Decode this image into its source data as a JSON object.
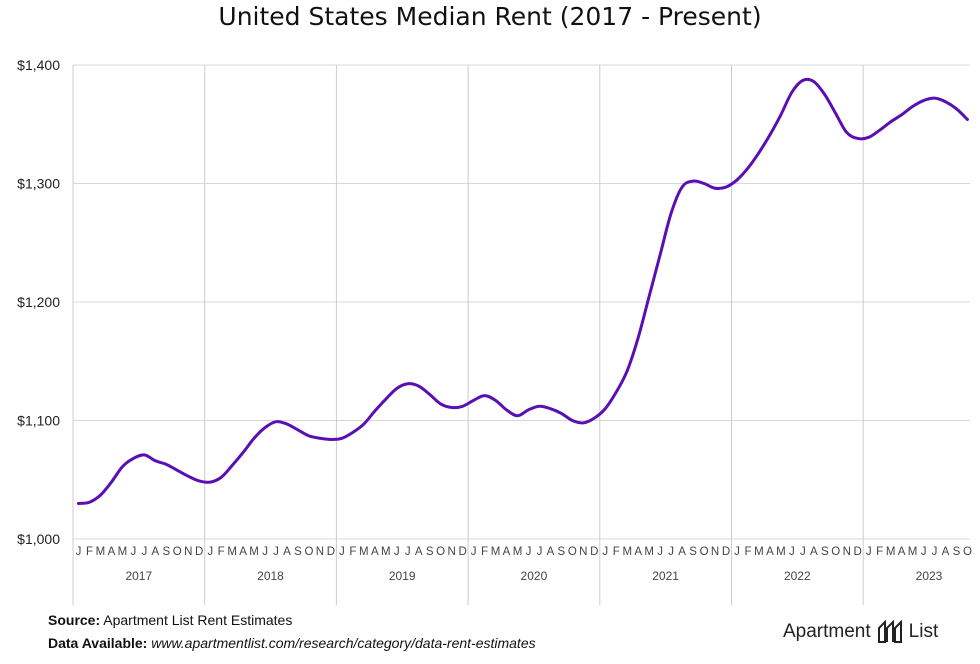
{
  "chart_data": {
    "type": "line",
    "title": "United States Median Rent (2017 - Present)",
    "xlabel": "",
    "ylabel": "",
    "ylim": [
      1000,
      1400
    ],
    "yticks": [
      "$1,000",
      "$1,100",
      "$1,200",
      "$1,300",
      "$1,400"
    ],
    "ytick_values": [
      1000,
      1100,
      1200,
      1300,
      1400
    ],
    "grid": true,
    "line_color": "#5a0fb5",
    "month_letters": [
      "J",
      "F",
      "M",
      "A",
      "M",
      "J",
      "J",
      "A",
      "S",
      "O",
      "N",
      "D"
    ],
    "years": [
      "2017",
      "2018",
      "2019",
      "2020",
      "2021",
      "2022",
      "2023"
    ],
    "x_start": "2017-01",
    "x_end": "2023-10",
    "values": [
      1030,
      1031,
      1037,
      1048,
      1061,
      1068,
      1071,
      1066,
      1063,
      1058,
      1053,
      1049,
      1048,
      1052,
      1062,
      1073,
      1085,
      1094,
      1099,
      1097,
      1092,
      1087,
      1085,
      1084,
      1085,
      1090,
      1097,
      1108,
      1118,
      1127,
      1131,
      1129,
      1122,
      1114,
      1111,
      1112,
      1117,
      1121,
      1117,
      1109,
      1104,
      1109,
      1112,
      1110,
      1106,
      1100,
      1098,
      1102,
      1110,
      1124,
      1142,
      1170,
      1205,
      1240,
      1275,
      1297,
      1302,
      1300,
      1296,
      1297,
      1303,
      1313,
      1326,
      1341,
      1358,
      1377,
      1387,
      1386,
      1375,
      1359,
      1343,
      1338,
      1339,
      1345,
      1352,
      1358,
      1365,
      1370,
      1372,
      1369,
      1363,
      1354
    ]
  },
  "footer": {
    "source_label": "Source:",
    "source_text": "Apartment List Rent Estimates",
    "data_label": "Data Available:",
    "data_text": "www.apartmentlist.com/research/category/data-rent-estimates"
  },
  "logo": {
    "left": "Apartment",
    "right": "List"
  }
}
